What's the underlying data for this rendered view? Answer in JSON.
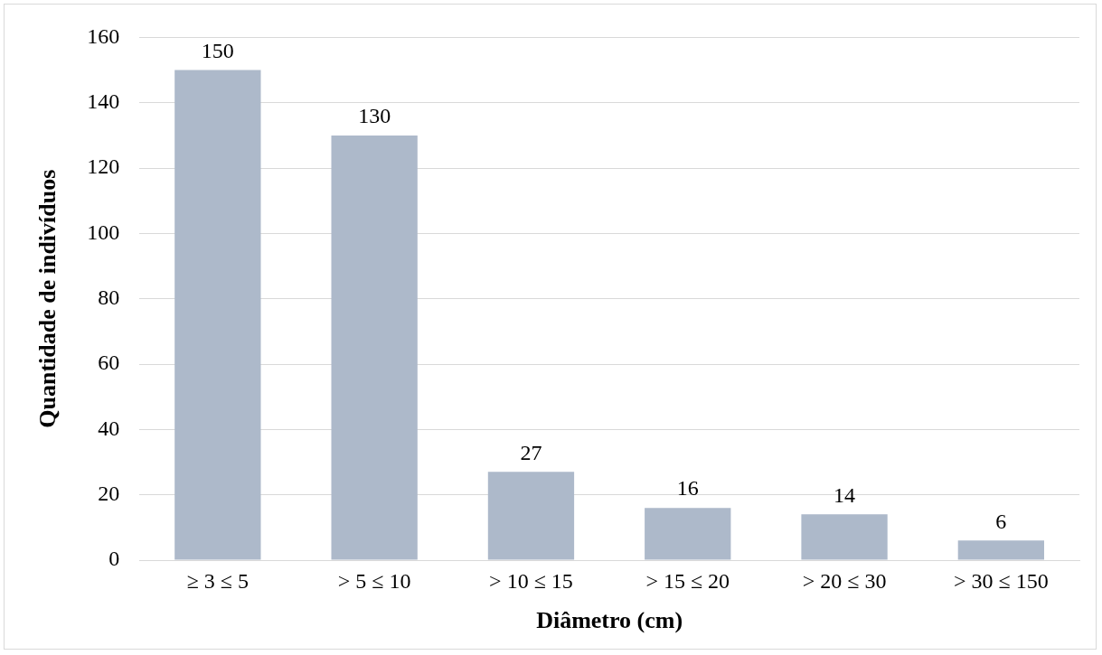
{
  "chart_data": {
    "type": "bar",
    "xlabel": "Diâmetro (cm)",
    "ylabel": "Quantidade de indivíduos",
    "categories": [
      "≥ 3 ≤ 5",
      "> 5 ≤ 10",
      "> 10 ≤ 15",
      "> 15 ≤ 20",
      "> 20 ≤ 30",
      "> 30 ≤ 150"
    ],
    "values": [
      150,
      130,
      27,
      16,
      14,
      6
    ],
    "color": "#adb9ca",
    "ylim": [
      0,
      160
    ],
    "yticks": [
      0,
      20,
      40,
      60,
      80,
      100,
      120,
      140,
      160
    ],
    "grid": "y",
    "data_labels": true,
    "legend": false
  }
}
